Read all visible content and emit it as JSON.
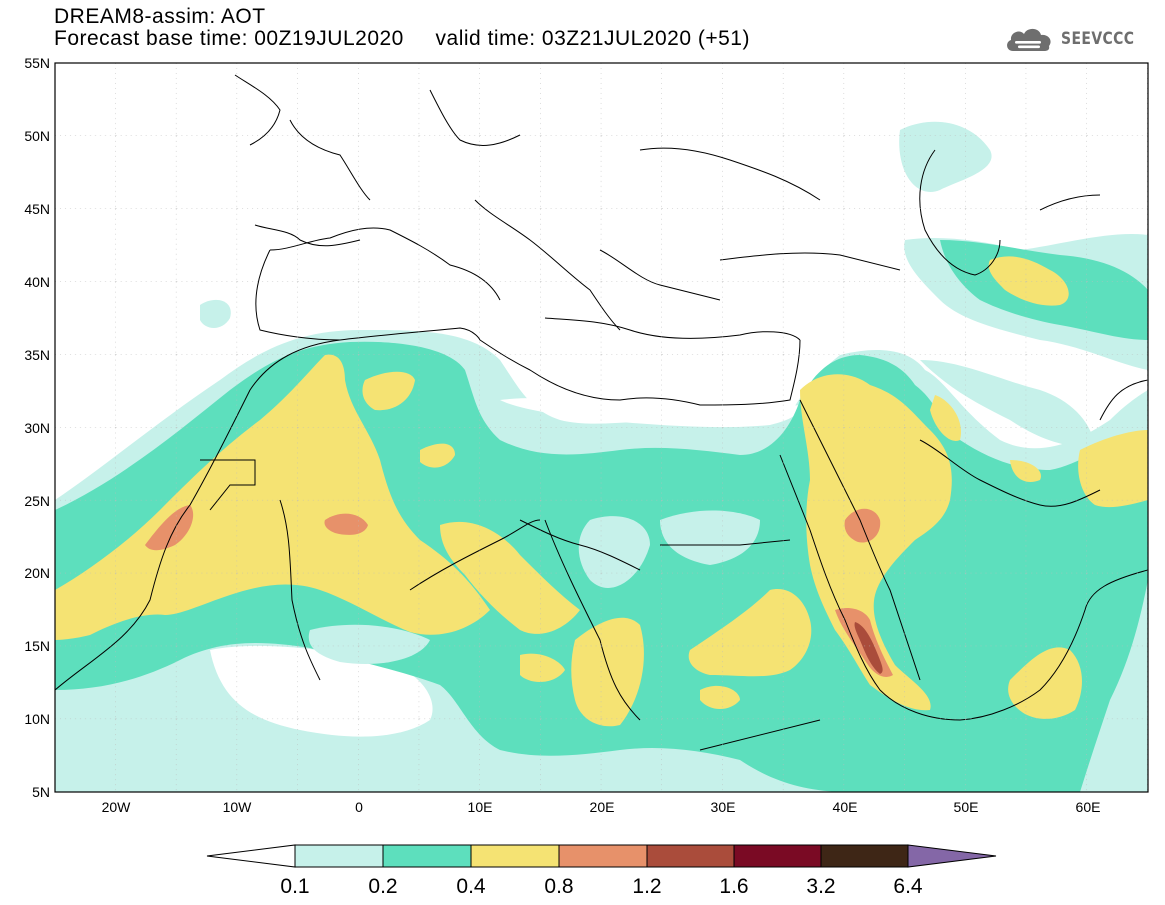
{
  "header": {
    "model_line": "DREAM8-assim: AOT",
    "base_time_label": "Forecast base time:",
    "base_time": "00Z19JUL2020",
    "valid_time_label": "valid time:",
    "valid_time": "03Z21JUL2020 (+51)"
  },
  "brand": {
    "name": "SEEVCCC",
    "icon": "cloud-icon"
  },
  "map": {
    "lon_range": [
      -25,
      65
    ],
    "lat_range": [
      5,
      55
    ],
    "lat_labels": [
      "55N",
      "50N",
      "45N",
      "40N",
      "35N",
      "30N",
      "25N",
      "20N",
      "15N",
      "10N",
      "5N"
    ],
    "lon_labels": [
      "20W",
      "10W",
      "0",
      "10E",
      "20E",
      "30E",
      "40E",
      "50E",
      "60E"
    ],
    "grid": true
  },
  "colorbar": {
    "levels": [
      "0.1",
      "0.2",
      "0.4",
      "0.8",
      "1.2",
      "1.6",
      "3.2",
      "6.4"
    ],
    "colors": [
      "#ffffff",
      "#c6f1ea",
      "#5ddfbd",
      "#f5e373",
      "#e7916a",
      "#aa4c3b",
      "#7a0a24",
      "#3e2616",
      "#8467a7"
    ]
  }
}
